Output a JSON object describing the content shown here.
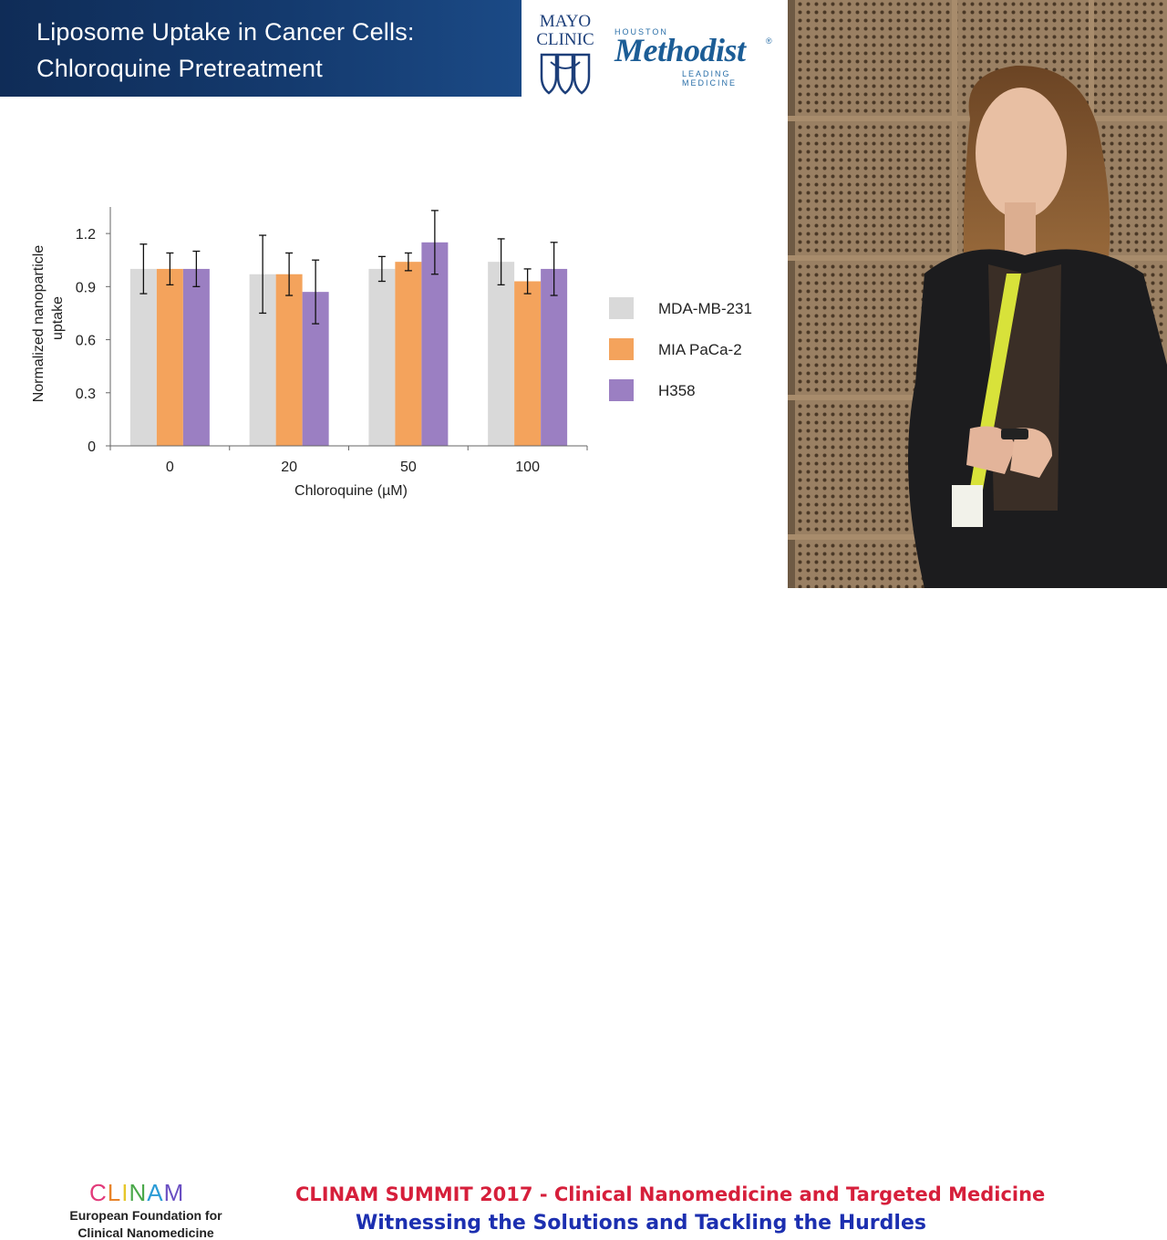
{
  "slide": {
    "title_line1": "Liposome Uptake in Cancer Cells:",
    "title_line2": "Chloroquine Pretreatment",
    "logo_mayo_line1": "MAYO",
    "logo_mayo_line2": "CLINIC",
    "logo_methodist_top": "HOUSTON",
    "logo_methodist_name": "Methodist",
    "logo_methodist_tm": "®",
    "logo_methodist_tag": "LEADING MEDICINE"
  },
  "chart_data": {
    "type": "bar",
    "title": "",
    "xlabel": "Chloroquine (µM)",
    "ylabel": "Normalized nanoparticle uptake",
    "ylabel_line1": "Normalized nanoparticle",
    "ylabel_line2": "uptake",
    "categories": [
      "0",
      "20",
      "50",
      "100"
    ],
    "ylim": [
      0,
      1.35
    ],
    "yticks": [
      0,
      0.3,
      0.6,
      0.9,
      1.2
    ],
    "ytick_labels": [
      "0",
      "0.3",
      "0.6",
      "0.9",
      "1.2"
    ],
    "legend_position": "right",
    "series": [
      {
        "name": "MDA-MB-231",
        "color": "#d9d9d9",
        "values": [
          1.0,
          0.97,
          1.0,
          1.04
        ],
        "errors": [
          0.14,
          0.22,
          0.07,
          0.13
        ]
      },
      {
        "name": "MIA PaCa-2",
        "color": "#f4a35c",
        "values": [
          1.0,
          0.97,
          1.04,
          0.93
        ],
        "errors": [
          0.09,
          0.12,
          0.05,
          0.07
        ]
      },
      {
        "name": "H358",
        "color": "#9b7fc2",
        "values": [
          1.0,
          0.87,
          1.15,
          1.0
        ],
        "errors": [
          0.1,
          0.18,
          0.18,
          0.15
        ]
      }
    ]
  },
  "banner": {
    "clinam_logo_text": "CLINAM",
    "clinam_sub_line1": "European Foundation for",
    "clinam_sub_line2": "Clinical Nanomedicine",
    "line1": "CLINAM SUMMIT 2017 - Clinical Nanomedicine and Targeted Medicine",
    "line2": "Witnessing the Solutions and Tackling the Hurdles",
    "line1_color": "#d61f3b",
    "line2_color": "#1c2fb0"
  }
}
